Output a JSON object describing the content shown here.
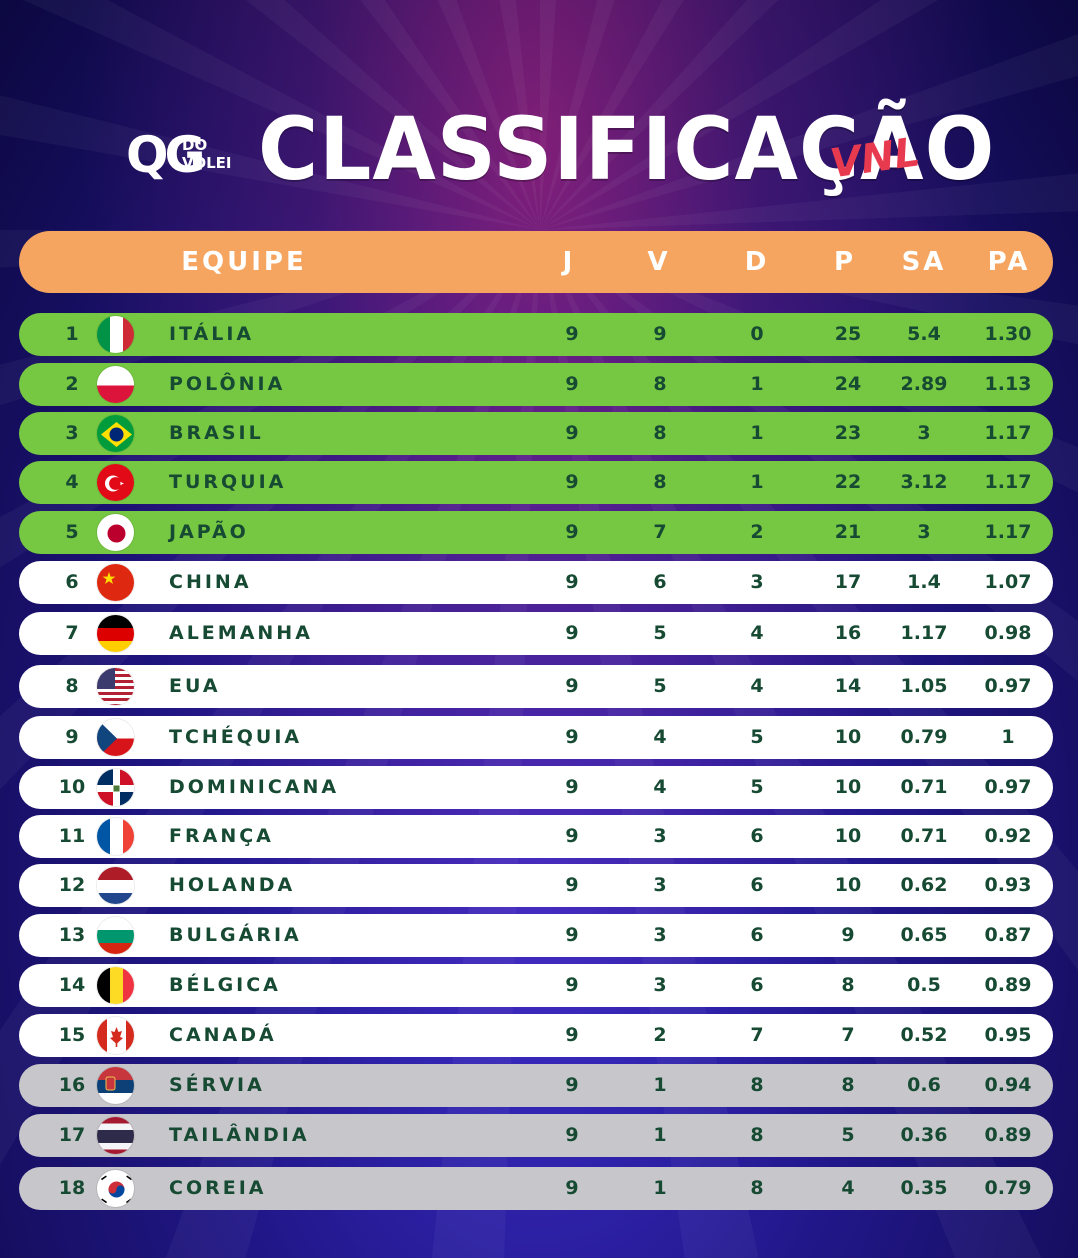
{
  "header": {
    "logo_main": "QG",
    "logo_top": "DO",
    "logo_bottom": "VÔLEI",
    "title": "CLASSIFICAÇÃO",
    "badge": "VNL"
  },
  "colors": {
    "header_bar": "#f6a560",
    "qualified_row": "#76c843",
    "regular_row": "#ffffff",
    "relegation_row": "#c7c7cb",
    "row_text": "#174a33"
  },
  "columns": {
    "team": "EQUIPE",
    "j": "J",
    "v": "V",
    "d": "D",
    "p": "P",
    "sa": "SA",
    "pa": "PA"
  },
  "standings": [
    {
      "pos": "1",
      "team": "ITÁLIA",
      "flag": "italy-flag-icon",
      "j": "9",
      "v": "9",
      "d": "0",
      "p": "25",
      "sa": "5.4",
      "pa": "1.30",
      "zone": "green"
    },
    {
      "pos": "2",
      "team": "POLÔNIA",
      "flag": "poland-flag-icon",
      "j": "9",
      "v": "8",
      "d": "1",
      "p": "24",
      "sa": "2.89",
      "pa": "1.13",
      "zone": "green"
    },
    {
      "pos": "3",
      "team": "BRASIL",
      "flag": "brazil-flag-icon",
      "j": "9",
      "v": "8",
      "d": "1",
      "p": "23",
      "sa": "3",
      "pa": "1.17",
      "zone": "green"
    },
    {
      "pos": "4",
      "team": "TURQUIA",
      "flag": "turkey-flag-icon",
      "j": "9",
      "v": "8",
      "d": "1",
      "p": "22",
      "sa": "3.12",
      "pa": "1.17",
      "zone": "green"
    },
    {
      "pos": "5",
      "team": "JAPÃO",
      "flag": "japan-flag-icon",
      "j": "9",
      "v": "7",
      "d": "2",
      "p": "21",
      "sa": "3",
      "pa": "1.17",
      "zone": "green"
    },
    {
      "pos": "6",
      "team": "CHINA",
      "flag": "china-flag-icon",
      "j": "9",
      "v": "6",
      "d": "3",
      "p": "17",
      "sa": "1.4",
      "pa": "1.07",
      "zone": "white"
    },
    {
      "pos": "7",
      "team": "ALEMANHA",
      "flag": "germany-flag-icon",
      "j": "9",
      "v": "5",
      "d": "4",
      "p": "16",
      "sa": "1.17",
      "pa": "0.98",
      "zone": "white"
    },
    {
      "pos": "8",
      "team": "EUA",
      "flag": "usa-flag-icon",
      "j": "9",
      "v": "5",
      "d": "4",
      "p": "14",
      "sa": "1.05",
      "pa": "0.97",
      "zone": "white"
    },
    {
      "pos": "9",
      "team": "TCHÉQUIA",
      "flag": "czechia-flag-icon",
      "j": "9",
      "v": "4",
      "d": "5",
      "p": "10",
      "sa": "0.79",
      "pa": "1",
      "zone": "white"
    },
    {
      "pos": "10",
      "team": "DOMINICANA",
      "flag": "dominican-flag-icon",
      "j": "9",
      "v": "4",
      "d": "5",
      "p": "10",
      "sa": "0.71",
      "pa": "0.97",
      "zone": "white"
    },
    {
      "pos": "11",
      "team": "FRANÇA",
      "flag": "france-flag-icon",
      "j": "9",
      "v": "3",
      "d": "6",
      "p": "10",
      "sa": "0.71",
      "pa": "0.92",
      "zone": "white"
    },
    {
      "pos": "12",
      "team": "HOLANDA",
      "flag": "netherlands-flag-icon",
      "j": "9",
      "v": "3",
      "d": "6",
      "p": "10",
      "sa": "0.62",
      "pa": "0.93",
      "zone": "white"
    },
    {
      "pos": "13",
      "team": "BULGÁRIA",
      "flag": "bulgaria-flag-icon",
      "j": "9",
      "v": "3",
      "d": "6",
      "p": "9",
      "sa": "0.65",
      "pa": "0.87",
      "zone": "white"
    },
    {
      "pos": "14",
      "team": "BÉLGICA",
      "flag": "belgium-flag-icon",
      "j": "9",
      "v": "3",
      "d": "6",
      "p": "8",
      "sa": "0.5",
      "pa": "0.89",
      "zone": "white"
    },
    {
      "pos": "15",
      "team": "CANADÁ",
      "flag": "canada-flag-icon",
      "j": "9",
      "v": "2",
      "d": "7",
      "p": "7",
      "sa": "0.52",
      "pa": "0.95",
      "zone": "white"
    },
    {
      "pos": "16",
      "team": "SÉRVIA",
      "flag": "serbia-flag-icon",
      "j": "9",
      "v": "1",
      "d": "8",
      "p": "8",
      "sa": "0.6",
      "pa": "0.94",
      "zone": "grey"
    },
    {
      "pos": "17",
      "team": "TAILÂNDIA",
      "flag": "thailand-flag-icon",
      "j": "9",
      "v": "1",
      "d": "8",
      "p": "5",
      "sa": "0.36",
      "pa": "0.89",
      "zone": "grey"
    },
    {
      "pos": "18",
      "team": "COREIA",
      "flag": "korea-flag-icon",
      "j": "9",
      "v": "1",
      "d": "8",
      "p": "4",
      "sa": "0.35",
      "pa": "0.79",
      "zone": "grey"
    }
  ]
}
